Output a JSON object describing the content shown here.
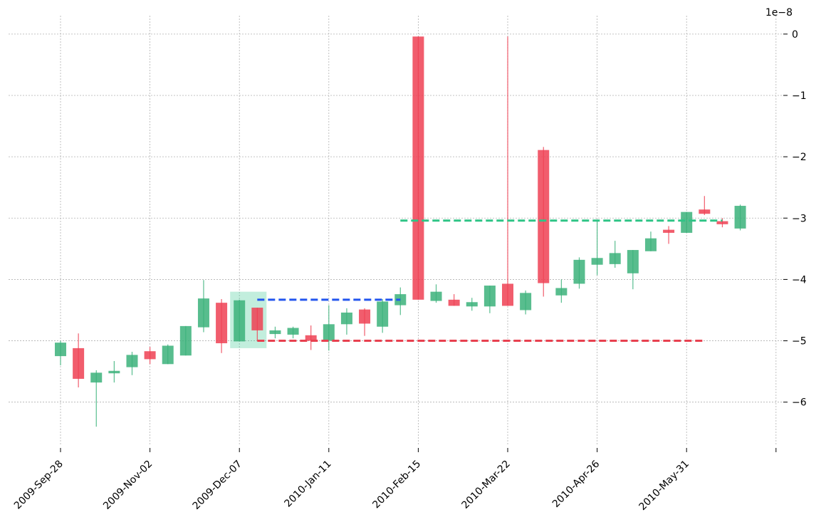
{
  "chart_data": {
    "type": "candlestick",
    "y_multiplier_label": "1e−8",
    "ylim": [
      -6.7,
      0.3
    ],
    "yticks": [
      {
        "value": 0,
        "label": "0"
      },
      {
        "value": -1,
        "label": "−1"
      },
      {
        "value": -2,
        "label": "−2"
      },
      {
        "value": -3,
        "label": "−3"
      },
      {
        "value": -4,
        "label": "−4"
      },
      {
        "value": -5,
        "label": "−5"
      },
      {
        "value": -6,
        "label": "−6"
      }
    ],
    "xticks": [
      {
        "index": 0,
        "label": "2009-Sep-28"
      },
      {
        "index": 5,
        "label": "2009-Nov-02"
      },
      {
        "index": 10,
        "label": "2009-Dec-07"
      },
      {
        "index": 15,
        "label": "2010-Jan-11"
      },
      {
        "index": 20,
        "label": "2010-Feb-15"
      },
      {
        "index": 25,
        "label": "2010-Mar-22"
      },
      {
        "index": 30,
        "label": "2010-Apr-26"
      },
      {
        "index": 35,
        "label": "2010-May-31"
      },
      {
        "index": 40,
        "label": ""
      }
    ],
    "grid": true,
    "colors": {
      "up": "#3bb17a",
      "down": "#ee4154",
      "highlight": "#34c78f",
      "support": "#2255ee",
      "resistance_top": "#2ec486",
      "resistance_bottom": "#e8404f"
    },
    "candles": [
      {
        "o": -5.25,
        "h": -5.0,
        "l": -5.4,
        "c": -5.03
      },
      {
        "o": -5.12,
        "h": -4.88,
        "l": -5.76,
        "c": -5.62
      },
      {
        "o": -5.68,
        "h": -5.48,
        "l": -6.4,
        "c": -5.52
      },
      {
        "o": -5.53,
        "h": -5.33,
        "l": -5.68,
        "c": -5.49
      },
      {
        "o": -5.43,
        "h": -5.18,
        "l": -5.56,
        "c": -5.23
      },
      {
        "o": -5.17,
        "h": -5.1,
        "l": -5.38,
        "c": -5.3
      },
      {
        "o": -5.38,
        "h": -5.06,
        "l": -5.38,
        "c": -5.08
      },
      {
        "o": -5.24,
        "h": -4.76,
        "l": -5.24,
        "c": -4.76
      },
      {
        "o": -4.78,
        "h": -4.01,
        "l": -4.86,
        "c": -4.31
      },
      {
        "o": -4.38,
        "h": -4.32,
        "l": -5.2,
        "c": -5.04
      },
      {
        "o": -5.01,
        "h": -4.33,
        "l": -5.01,
        "c": -4.34
      },
      {
        "o": -4.46,
        "h": -4.46,
        "l": -5.0,
        "c": -4.83
      },
      {
        "o": -4.89,
        "h": -4.77,
        "l": -4.96,
        "c": -4.83
      },
      {
        "o": -4.9,
        "h": -4.77,
        "l": -4.96,
        "c": -4.79
      },
      {
        "o": -4.91,
        "h": -4.75,
        "l": -5.15,
        "c": -5.0
      },
      {
        "o": -5.0,
        "h": -4.42,
        "l": -5.16,
        "c": -4.73
      },
      {
        "o": -4.73,
        "h": -4.47,
        "l": -4.9,
        "c": -4.54
      },
      {
        "o": -4.49,
        "h": -4.47,
        "l": -4.92,
        "c": -4.72
      },
      {
        "o": -4.77,
        "h": -4.32,
        "l": -4.87,
        "c": -4.36
      },
      {
        "o": -4.42,
        "h": -4.13,
        "l": -4.58,
        "c": -4.24
      },
      {
        "o": -0.04,
        "h": -0.04,
        "l": -4.33,
        "c": -4.33
      },
      {
        "o": -4.35,
        "h": -4.08,
        "l": -4.38,
        "c": -4.2
      },
      {
        "o": -4.33,
        "h": -4.24,
        "l": -4.43,
        "c": -4.43
      },
      {
        "o": -4.44,
        "h": -4.3,
        "l": -4.51,
        "c": -4.37
      },
      {
        "o": -4.44,
        "h": -4.1,
        "l": -4.55,
        "c": -4.1
      },
      {
        "o": -4.07,
        "h": -0.04,
        "l": -4.43,
        "c": -4.43
      },
      {
        "o": -4.5,
        "h": -4.18,
        "l": -4.57,
        "c": -4.22
      },
      {
        "o": -1.89,
        "h": -1.84,
        "l": -4.28,
        "c": -4.06
      },
      {
        "o": -4.26,
        "h": -4.0,
        "l": -4.38,
        "c": -4.14
      },
      {
        "o": -4.07,
        "h": -3.64,
        "l": -4.15,
        "c": -3.68
      },
      {
        "o": -3.76,
        "h": -3.05,
        "l": -3.93,
        "c": -3.65
      },
      {
        "o": -3.75,
        "h": -3.37,
        "l": -3.81,
        "c": -3.57
      },
      {
        "o": -3.9,
        "h": -3.52,
        "l": -4.16,
        "c": -3.52
      },
      {
        "o": -3.54,
        "h": -3.22,
        "l": -3.54,
        "c": -3.33
      },
      {
        "o": -3.19,
        "h": -3.13,
        "l": -3.42,
        "c": -3.24
      },
      {
        "o": -3.24,
        "h": -2.9,
        "l": -3.24,
        "c": -2.9
      },
      {
        "o": -2.86,
        "h": -2.64,
        "l": -2.95,
        "c": -2.93
      },
      {
        "o": -3.05,
        "h": -3.0,
        "l": -3.15,
        "c": -3.1
      },
      {
        "o": -3.17,
        "h": -2.78,
        "l": -3.2,
        "c": -2.8
      }
    ],
    "highlight_range": {
      "from": 10,
      "to": 11,
      "y_top": -4.2,
      "y_bottom": -5.12
    },
    "support_line": {
      "from": 11,
      "to": 19,
      "y": -4.33
    },
    "resistance_line": {
      "from": 19,
      "to": 37,
      "y": -3.04
    },
    "lower_line": {
      "from": 11,
      "to": 36,
      "y": -5.0
    }
  }
}
